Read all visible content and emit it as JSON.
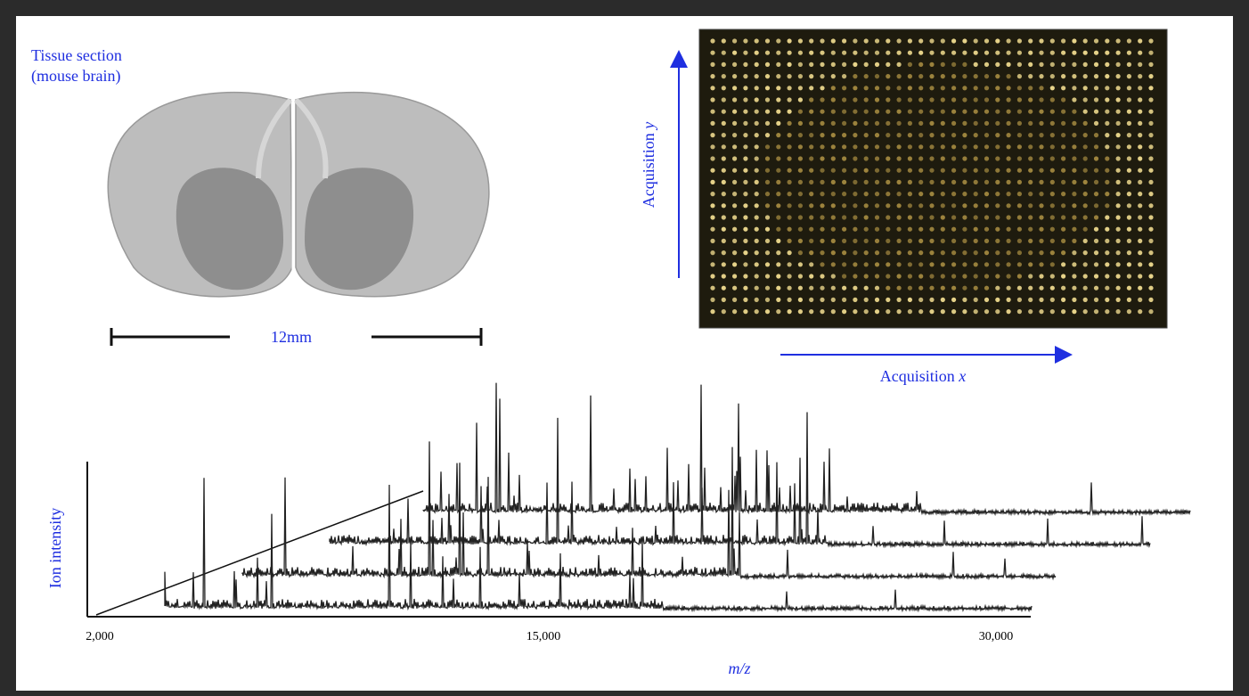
{
  "tissue_label": {
    "line1": "Tissue section",
    "line2": "(mouse brain)"
  },
  "scale_bar": "12mm",
  "acquisition_y": {
    "text": "Acquisition",
    "var": "y"
  },
  "acquisition_x": {
    "text": "Acquisition",
    "var": "x"
  },
  "spectrum": {
    "y_label": "Ion intensity",
    "x_ticks": [
      "2,000",
      "15,000",
      "30,000"
    ],
    "x_label": "m/z"
  }
}
